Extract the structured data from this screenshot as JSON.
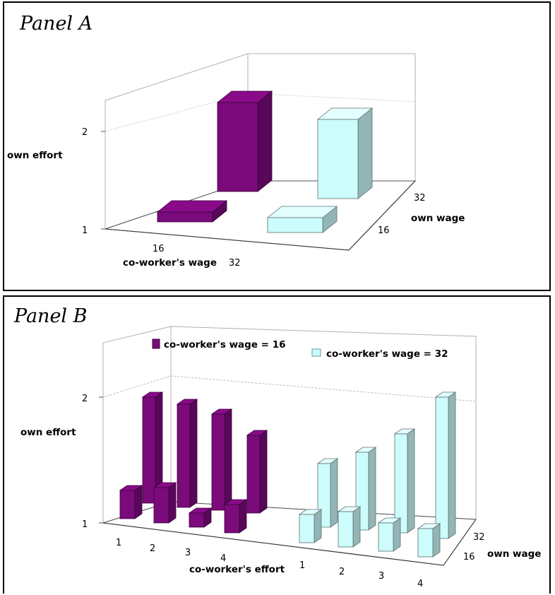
{
  "panels": [
    {
      "title": "Panel A",
      "chart_data": {
        "type": "bar",
        "style": "3d-column",
        "ylabel": "own effort",
        "y_ticks": [
          "1",
          "2"
        ],
        "y_range": [
          1,
          2.6
        ],
        "x_axis_label": "co-worker's wage",
        "x_categories": [
          "16",
          "32"
        ],
        "depth_axis_label": "own wage",
        "depth_categories": [
          "16",
          "32"
        ],
        "colors": {
          "16": "#7b0a7b",
          "32": "#ccfcfc"
        },
        "values": [
          {
            "coworker_wage": "16",
            "own_wage": "16",
            "own_effort": 1.1
          },
          {
            "coworker_wage": "16",
            "own_wage": "32",
            "own_effort": 1.9
          },
          {
            "coworker_wage": "32",
            "own_wage": "16",
            "own_effort": 1.15
          },
          {
            "coworker_wage": "32",
            "own_wage": "32",
            "own_effort": 1.8
          }
        ]
      }
    },
    {
      "title": "Panel B",
      "chart_data": {
        "type": "bar",
        "style": "3d-column",
        "ylabel": "own effort",
        "y_ticks": [
          "1",
          "2"
        ],
        "y_range": [
          1,
          2.6
        ],
        "x_axis_label": "co-worker's effort",
        "depth_axis_label": "own wage",
        "depth_categories": [
          "16",
          "32"
        ],
        "legend_position": "top",
        "series": [
          {
            "name": "co-worker's wage = 16",
            "color": "#7b0a7b",
            "x_categories": [
              "1",
              "2",
              "3",
              "4"
            ],
            "own_wage_16": [
              1.2,
              1.25,
              1.1,
              1.2
            ],
            "own_wage_32": [
              1.75,
              1.73,
              1.68,
              1.55
            ]
          },
          {
            "name": "co-worker's wage = 32",
            "color": "#ccfcfc",
            "x_categories": [
              "1",
              "2",
              "3",
              "4"
            ],
            "own_wage_16": [
              1.2,
              1.25,
              1.2,
              1.2
            ],
            "own_wage_32": [
              1.45,
              1.55,
              1.7,
              2.0
            ]
          }
        ]
      }
    }
  ]
}
